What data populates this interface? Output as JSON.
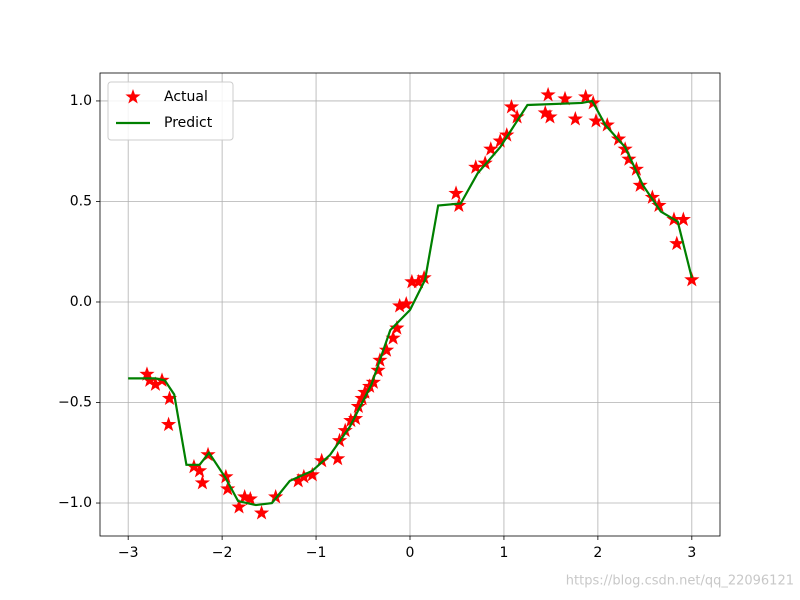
{
  "chart_data": {
    "type": "line",
    "xlim": [
      -3.3,
      3.3
    ],
    "ylim": [
      -1.164,
      1.139
    ],
    "xticks": [
      {
        "value": -3,
        "label": "−3"
      },
      {
        "value": -2,
        "label": "−2"
      },
      {
        "value": -1,
        "label": "−1"
      },
      0,
      1,
      2,
      3
    ],
    "yticks": [
      {
        "value": -1,
        "label": "−1.0"
      },
      {
        "value": -0.5,
        "label": "−0.5"
      },
      {
        "value": 0,
        "label": "0.0"
      },
      0.5,
      {
        "value": 1,
        "label": "1.0"
      }
    ],
    "grid": true,
    "legend": "upper left",
    "watermark": "https://blog.csdn.net/qq_22096121",
    "series": [
      {
        "name": "Actual",
        "color": "red",
        "marker": "star",
        "line": false,
        "x": [
          -2.8,
          -2.77,
          -2.71,
          -2.64,
          -2.56,
          -2.57,
          -2.3,
          -2.24,
          -2.21,
          -2.15,
          -1.96,
          -1.94,
          -1.82,
          -1.76,
          -1.7,
          -1.58,
          -1.43,
          -1.19,
          -1.13,
          -1.04,
          -0.94,
          -0.77,
          -0.75,
          -0.69,
          -0.63,
          -0.58,
          -0.55,
          -0.51,
          -0.48,
          -0.43,
          -0.39,
          -0.34,
          -0.32,
          -0.25,
          -0.18,
          -0.14,
          -0.11,
          -0.04,
          0.02,
          0.09,
          0.15,
          0.49,
          0.52,
          0.7,
          0.8,
          0.86,
          0.96,
          1.03,
          1.08,
          1.14,
          1.47,
          1.44,
          1.49,
          1.65,
          1.76,
          1.87,
          1.95,
          1.98,
          2.1,
          2.22,
          2.29,
          2.33,
          2.41,
          2.45,
          2.58,
          2.65,
          2.81,
          2.84,
          2.91,
          3.0
        ],
        "values": [
          -0.36,
          -0.39,
          -0.41,
          -0.39,
          -0.48,
          -0.61,
          -0.82,
          -0.84,
          -0.9,
          -0.76,
          -0.87,
          -0.93,
          -1.02,
          -0.97,
          -0.98,
          -1.05,
          -0.97,
          -0.89,
          -0.87,
          -0.86,
          -0.79,
          -0.78,
          -0.69,
          -0.64,
          -0.59,
          -0.58,
          -0.52,
          -0.48,
          -0.45,
          -0.42,
          -0.4,
          -0.34,
          -0.29,
          -0.24,
          -0.18,
          -0.13,
          -0.02,
          -0.01,
          0.1,
          0.1,
          0.12,
          0.54,
          0.48,
          0.67,
          0.69,
          0.76,
          0.8,
          0.83,
          0.97,
          0.92,
          1.03,
          0.94,
          0.92,
          1.01,
          0.91,
          1.02,
          0.99,
          0.9,
          0.88,
          0.81,
          0.76,
          0.71,
          0.66,
          0.58,
          0.52,
          0.48,
          0.41,
          0.29,
          0.41,
          0.11
        ]
      },
      {
        "name": "Predict",
        "color": "green",
        "marker": "none",
        "line": true,
        "x": [
          -3.0,
          -2.71,
          -2.61,
          -2.51,
          -2.38,
          -2.24,
          -2.14,
          -1.97,
          -1.83,
          -1.64,
          -1.47,
          -1.28,
          -1.04,
          -0.85,
          -0.64,
          -0.41,
          -0.21,
          0.0,
          0.16,
          0.3,
          0.54,
          0.72,
          0.96,
          1.25,
          1.83,
          1.94,
          2.08,
          2.29,
          2.48,
          2.67,
          2.85,
          3.0
        ],
        "values": [
          -0.38,
          -0.38,
          -0.39,
          -0.46,
          -0.81,
          -0.81,
          -0.75,
          -0.87,
          -0.99,
          -1.01,
          -1.0,
          -0.89,
          -0.84,
          -0.76,
          -0.62,
          -0.41,
          -0.14,
          -0.04,
          0.11,
          0.48,
          0.49,
          0.64,
          0.77,
          0.98,
          0.99,
          1.0,
          0.88,
          0.77,
          0.58,
          0.45,
          0.4,
          0.12
        ]
      }
    ]
  }
}
